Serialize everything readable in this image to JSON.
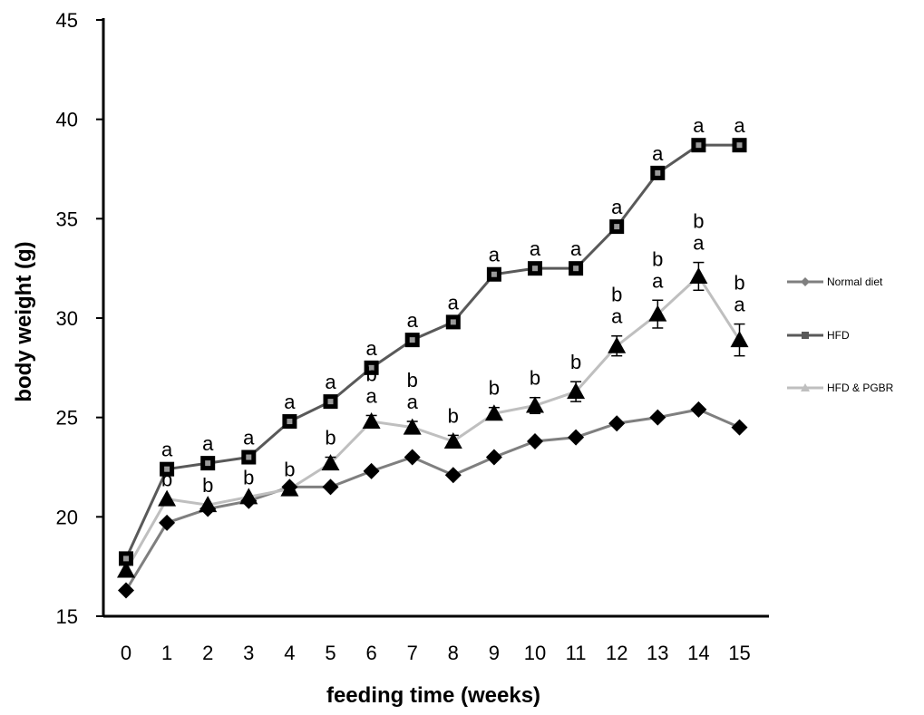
{
  "chart_data": {
    "type": "line",
    "xlabel": "feeding time (weeks)",
    "ylabel": "body weight (g)",
    "x": [
      0,
      1,
      2,
      3,
      4,
      5,
      6,
      7,
      8,
      9,
      10,
      11,
      12,
      13,
      14,
      15
    ],
    "ylim": [
      15,
      45
    ],
    "yticks": [
      15,
      20,
      25,
      30,
      35,
      40,
      45
    ],
    "grid": false,
    "legend_position": "right",
    "series": [
      {
        "name": "Normal diet",
        "marker": "diamond",
        "color": "#7f7f7f",
        "marker_color": "#000000",
        "values": [
          16.3,
          19.7,
          20.4,
          20.8,
          21.5,
          21.5,
          22.3,
          23.0,
          22.1,
          23.0,
          23.8,
          24.0,
          24.7,
          25.0,
          25.4,
          24.5
        ],
        "errors": [
          0.2,
          0.2,
          0.2,
          0.2,
          0.2,
          0.2,
          0.2,
          0.2,
          0.2,
          0.2,
          0.2,
          0.2,
          0.2,
          0.2,
          0.2,
          0.2
        ]
      },
      {
        "name": "HFD",
        "marker": "square",
        "color": "#595959",
        "marker_color": "#000000",
        "values": [
          17.9,
          22.4,
          22.7,
          23.0,
          24.8,
          25.8,
          27.5,
          28.9,
          29.8,
          32.2,
          32.5,
          32.5,
          34.6,
          37.3,
          38.7,
          38.7
        ],
        "errors": [
          0.2,
          0.2,
          0.2,
          0.2,
          0.2,
          0.2,
          0.2,
          0.2,
          0.2,
          0.2,
          0.2,
          0.2,
          0.2,
          0.2,
          0.2,
          0.2
        ],
        "annotations": [
          null,
          "a",
          "a",
          "a",
          "a",
          "a",
          "a",
          "a",
          "a",
          "a",
          "a",
          "a",
          "a",
          "a",
          "a",
          "a"
        ]
      },
      {
        "name": "HFD & PGBR",
        "marker": "triangle",
        "color": "#bfbfbf",
        "marker_color": "#000000",
        "values": [
          17.3,
          20.9,
          20.6,
          21.0,
          21.4,
          22.7,
          24.8,
          24.5,
          23.8,
          25.2,
          25.6,
          26.3,
          28.6,
          30.2,
          32.1,
          28.9
        ],
        "errors": [
          0.2,
          0.2,
          0.2,
          0.2,
          0.2,
          0.3,
          0.3,
          0.3,
          0.3,
          0.3,
          0.4,
          0.5,
          0.5,
          0.7,
          0.7,
          0.8
        ],
        "annotations": [
          null,
          "b",
          "b",
          "b",
          "b",
          "b",
          "b a",
          "b a",
          "b",
          "b",
          "b",
          "b",
          "b a",
          "b a",
          "b a",
          "b a"
        ]
      }
    ]
  }
}
